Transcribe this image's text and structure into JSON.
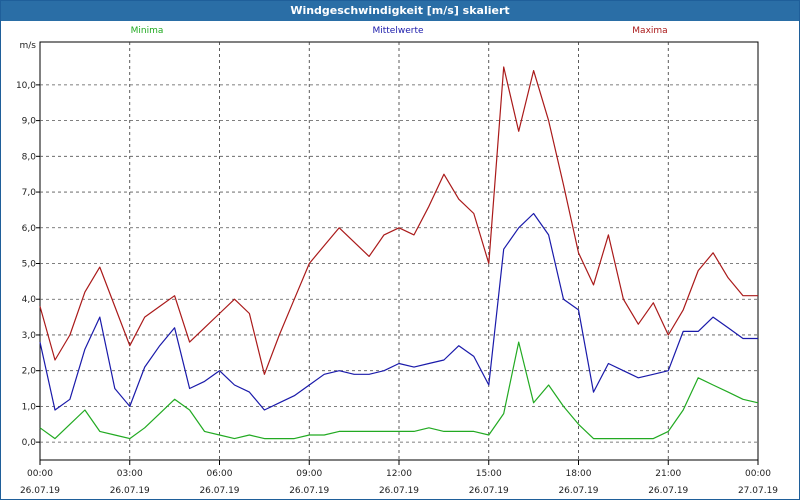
{
  "window": {
    "title": "Windgeschwindigkeit [m/s] skaliert"
  },
  "chart_data": {
    "type": "line",
    "title": "Windgeschwindigkeit [m/s] skaliert",
    "ylabel": "m/s",
    "xlabel": "",
    "ylim": [
      -0.5,
      11.2
    ],
    "xlim": [
      0,
      24
    ],
    "grid": true,
    "legend": "top",
    "yticks": [
      "0,0",
      "1,0",
      "2,0",
      "3,0",
      "4,0",
      "5,0",
      "6,0",
      "7,0",
      "8,0",
      "9,0",
      "10,0"
    ],
    "xticks": [
      {
        "time": "00:00",
        "date": "26.07.19"
      },
      {
        "time": "03:00",
        "date": "26.07.19"
      },
      {
        "time": "06:00",
        "date": "26.07.19"
      },
      {
        "time": "09:00",
        "date": "26.07.19"
      },
      {
        "time": "12:00",
        "date": "26.07.19"
      },
      {
        "time": "15:00",
        "date": "26.07.19"
      },
      {
        "time": "18:00",
        "date": "26.07.19"
      },
      {
        "time": "21:00",
        "date": "26.07.19"
      },
      {
        "time": "00:00",
        "date": "27.07.19"
      }
    ],
    "x": [
      0,
      0.5,
      1,
      1.5,
      2,
      2.5,
      3,
      3.5,
      4,
      4.5,
      5,
      5.5,
      6,
      6.5,
      7,
      7.5,
      8,
      8.5,
      9,
      9.5,
      10,
      10.5,
      11,
      11.5,
      12,
      12.5,
      13,
      13.5,
      14,
      14.5,
      15,
      15.5,
      16,
      16.5,
      17,
      17.5,
      18,
      18.5,
      19,
      19.5,
      20,
      20.5,
      21,
      21.5,
      22,
      22.5,
      23,
      23.5,
      24
    ],
    "series": [
      {
        "name": "Minima",
        "color": "#22aa22",
        "values": [
          0.4,
          0.1,
          0.5,
          0.9,
          0.3,
          0.2,
          0.1,
          0.4,
          0.8,
          1.2,
          0.9,
          0.3,
          0.2,
          0.1,
          0.2,
          0.1,
          0.1,
          0.1,
          0.2,
          0.2,
          0.3,
          0.3,
          0.3,
          0.3,
          0.3,
          0.3,
          0.4,
          0.3,
          0.3,
          0.3,
          0.2,
          0.8,
          2.8,
          1.1,
          1.6,
          1.0,
          0.5,
          0.1,
          0.1,
          0.1,
          0.1,
          0.1,
          0.3,
          0.9,
          1.8,
          1.6,
          1.4,
          1.2,
          1.1
        ]
      },
      {
        "name": "Mittelwerte",
        "color": "#1a1aaa",
        "values": [
          2.8,
          0.9,
          1.2,
          2.6,
          3.5,
          1.5,
          1.0,
          2.1,
          2.7,
          3.2,
          1.5,
          1.7,
          2.0,
          1.6,
          1.4,
          0.9,
          1.1,
          1.3,
          1.6,
          1.9,
          2.0,
          1.9,
          1.9,
          2.0,
          2.2,
          2.1,
          2.2,
          2.3,
          2.7,
          2.4,
          1.6,
          5.4,
          6.0,
          6.4,
          5.8,
          4.0,
          3.7,
          1.4,
          2.2,
          2.0,
          1.8,
          1.9,
          2.0,
          3.1,
          3.1,
          3.5,
          3.2,
          2.9,
          2.9
        ]
      },
      {
        "name": "Maxima",
        "color": "#aa1a1a",
        "values": [
          3.8,
          2.3,
          3.0,
          4.2,
          4.9,
          3.8,
          2.7,
          3.5,
          3.8,
          4.1,
          2.8,
          3.2,
          3.6,
          4.0,
          3.6,
          1.9,
          3.0,
          4.0,
          5.0,
          5.5,
          6.0,
          5.6,
          5.2,
          5.8,
          6.0,
          5.8,
          6.6,
          7.5,
          6.8,
          6.4,
          5.0,
          10.5,
          8.7,
          10.4,
          9.0,
          7.2,
          5.3,
          4.4,
          5.8,
          4.0,
          3.3,
          3.9,
          3.0,
          3.7,
          4.8,
          5.3,
          4.6,
          4.1,
          4.1
        ]
      }
    ]
  }
}
